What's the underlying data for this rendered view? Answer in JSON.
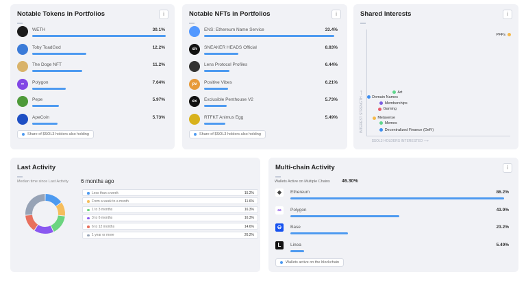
{
  "tokens": {
    "title": "Notable Tokens in Portfolios",
    "legend": "Share of $SOL3 holders also holding",
    "items": [
      {
        "name": "WETH",
        "pct": "30.1%",
        "value": 30.1,
        "icon": "WETH",
        "color": "#1b1b1b"
      },
      {
        "name": "Toby ToadGod",
        "pct": "12.2%",
        "value": 12.2,
        "icon": "toad",
        "color": "#3b7bd8"
      },
      {
        "name": "The Doge NFT",
        "pct": "11.2%",
        "value": 11.2,
        "icon": "doge",
        "color": "#d9b36a"
      },
      {
        "name": "Polygon",
        "pct": "7.64%",
        "value": 7.64,
        "icon": "∞",
        "color": "#8247e5"
      },
      {
        "name": "Pepe",
        "pct": "5.97%",
        "value": 5.97,
        "icon": "pepe",
        "color": "#4e9a3a"
      },
      {
        "name": "ApeCoin",
        "pct": "5.73%",
        "value": 5.73,
        "icon": "ape",
        "color": "#1e4fc4"
      }
    ]
  },
  "nfts": {
    "title": "Notable NFTs in Portfolios",
    "legend": "Share of $SOL3 holders also holding",
    "items": [
      {
        "name": "ENS: Ethereum Name Service",
        "pct": "33.4%",
        "value": 33.4,
        "icon": "ens",
        "color": "#5298ff"
      },
      {
        "name": "SNEAKER HEADS Official",
        "pct": "8.83%",
        "value": 8.83,
        "icon": "sh",
        "color": "#111"
      },
      {
        "name": "Lens Protocol Profiles",
        "pct": "6.44%",
        "value": 6.44,
        "icon": "lens",
        "color": "#333"
      },
      {
        "name": "Positive Vibes",
        "pct": "6.21%",
        "value": 6.21,
        "icon": "pv",
        "color": "#e79a3a"
      },
      {
        "name": "Exclusible Penthouse V2",
        "pct": "5.73%",
        "value": 5.73,
        "icon": "ex",
        "color": "#111"
      },
      {
        "name": "RTFKT Animus Egg",
        "pct": "5.49%",
        "value": 5.49,
        "icon": "egg",
        "color": "#d8b21c"
      }
    ]
  },
  "interests": {
    "title": "Shared Interests",
    "xlabel": "$SOL3 HOLDERS INTERESTED",
    "ylabel": "INTEREST STRENGTH",
    "chart_data": {
      "type": "scatter",
      "xlabel": "$SOL3 HOLDERS INTERESTED",
      "ylabel": "INTEREST STRENGTH",
      "xlim": [
        0,
        100
      ],
      "ylim": [
        0,
        100
      ],
      "points": [
        {
          "label": "PFPs",
          "x": 100,
          "y": 100,
          "color": "#f5b94a"
        },
        {
          "label": "Art",
          "x": 19,
          "y": 42,
          "color": "#5fd68c"
        },
        {
          "label": "Domain Names",
          "x": 1,
          "y": 37,
          "color": "#3d8ef0"
        },
        {
          "label": "Memberships",
          "x": 10,
          "y": 31,
          "color": "#7a5ce0"
        },
        {
          "label": "Gaming",
          "x": 9,
          "y": 25,
          "color": "#e85a6a"
        },
        {
          "label": "Metaverse",
          "x": 5,
          "y": 16,
          "color": "#f5b94a"
        },
        {
          "label": "Memes",
          "x": 10,
          "y": 11,
          "color": "#5fd68c"
        },
        {
          "label": "Decentralized Finance (DeFi)",
          "x": 10,
          "y": 4,
          "color": "#3d8ef0"
        }
      ]
    }
  },
  "activity": {
    "title": "Last Activity",
    "median_label": "Median time since Last Activity",
    "median_value": "6 months ago",
    "chart_data": {
      "type": "pie",
      "labels": [
        "Less than a week",
        "From a week to a month",
        "1 to 3 months",
        "3 to 6 months",
        "6 to 12 months",
        "1 year or more"
      ],
      "values": [
        15.2,
        11.6,
        16.3,
        16.3,
        14.6,
        26.2
      ],
      "display": [
        "15.2%",
        "11.6%",
        "16.3%",
        "16.3%",
        "14.6%",
        "26.2%"
      ],
      "colors": [
        "#4d9af0",
        "#f5bd5c",
        "#6bd47f",
        "#8a58f0",
        "#e8705e",
        "#97a3b6"
      ]
    }
  },
  "multichain": {
    "title": "Multi-chain Activity",
    "wallets_label": "Wallets Active on Multiple Chains",
    "wallets_value": "46.30%",
    "legend": "Wallets active on the blockchain",
    "items": [
      {
        "name": "Ethereum",
        "pct": "86.2%",
        "value": 86.2,
        "icon": "◆",
        "color": "#fff",
        "fg": "#444"
      },
      {
        "name": "Polygon",
        "pct": "43.9%",
        "value": 43.9,
        "icon": "∞",
        "color": "#fff",
        "fg": "#8247e5"
      },
      {
        "name": "Base",
        "pct": "23.2%",
        "value": 23.2,
        "icon": "⊖",
        "color": "#1652f0",
        "fg": "#fff"
      },
      {
        "name": "Linea",
        "pct": "5.49%",
        "value": 5.49,
        "icon": "L",
        "color": "#121212",
        "fg": "#fff"
      }
    ]
  }
}
